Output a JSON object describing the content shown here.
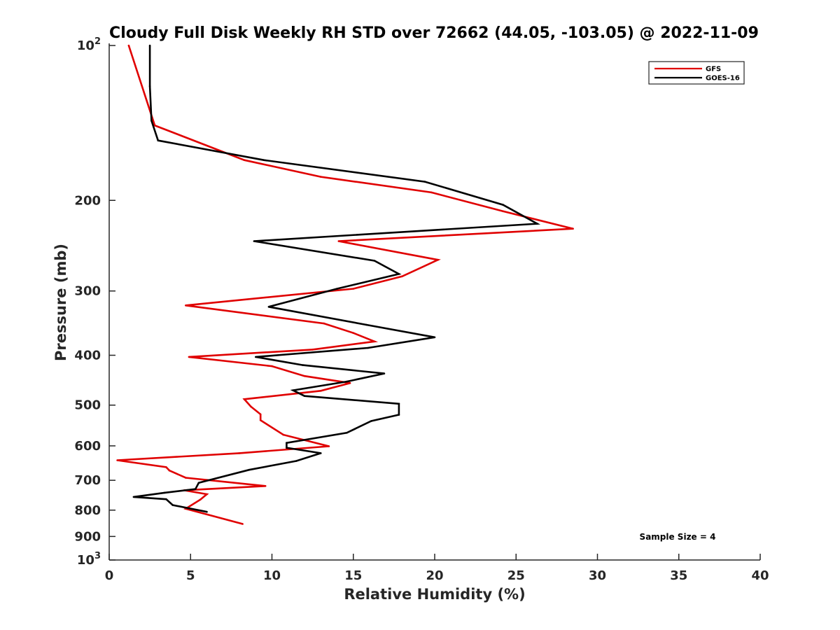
{
  "chart_data": {
    "type": "line",
    "title": "Cloudy Full Disk Weekly RH STD over 72662 (44.05, -103.05) @ 2022-11-09",
    "xlabel": "Relative Humidity (%)",
    "ylabel": "Pressure (mb)",
    "xlim": [
      0,
      40
    ],
    "ylim": [
      100,
      1000
    ],
    "y_scale": "log",
    "y_reversed": true,
    "x_ticks": [
      "0",
      "5",
      "10",
      "15",
      "20",
      "25",
      "30",
      "35",
      "40"
    ],
    "y_ticks": [
      {
        "value": 100,
        "base": "10",
        "exp": "2"
      },
      {
        "value": 200,
        "label": "200"
      },
      {
        "value": 300,
        "label": "300"
      },
      {
        "value": 400,
        "label": "400"
      },
      {
        "value": 500,
        "label": "500"
      },
      {
        "value": 600,
        "label": "600"
      },
      {
        "value": 700,
        "label": "700"
      },
      {
        "value": 800,
        "label": "800"
      },
      {
        "value": 900,
        "label": "900"
      },
      {
        "value": 1000,
        "base": "10",
        "exp": "3"
      }
    ],
    "grid": false,
    "legend_position": "top-right",
    "annotation": "Sample Size = 4",
    "series": [
      {
        "name": "GFS",
        "color": "#e00000",
        "x": [
          1.2,
          2.8,
          8.3,
          13.0,
          19.8,
          24.2,
          28.5,
          14.1,
          20.2,
          18.0,
          15.0,
          4.7,
          13.2,
          15.0,
          16.3,
          12.5,
          4.9,
          10.0,
          12.0,
          14.8,
          13.0,
          8.3,
          8.7,
          9.3,
          9.3,
          10.7,
          13.5,
          8.0,
          0.5,
          3.5,
          3.7,
          4.7,
          9.6,
          4.6,
          6.0,
          5.6,
          4.7,
          8.2
        ],
        "y": [
          100,
          143,
          167,
          180,
          193,
          210,
          227,
          240,
          261,
          281,
          297,
          320,
          347,
          362,
          376,
          390,
          403,
          420,
          439,
          453,
          469,
          487,
          503,
          521,
          535,
          571,
          601,
          620,
          640,
          660,
          670,
          692,
          718,
          732,
          745,
          763,
          795,
          851
        ]
      },
      {
        "name": "GOES-16",
        "color": "#000000",
        "x": [
          2.5,
          2.5,
          2.6,
          3.0,
          9.5,
          19.4,
          24.2,
          26.3,
          8.9,
          16.3,
          17.8,
          14.0,
          9.8,
          15.8,
          20.0,
          15.9,
          9.0,
          11.9,
          16.9,
          14.6,
          11.3,
          12.0,
          17.8,
          17.8,
          16.1,
          14.6,
          10.9,
          10.9,
          13.0,
          11.5,
          8.6,
          5.5,
          5.3,
          3.4,
          1.5,
          3.5,
          3.9,
          6.0
        ],
        "y": [
          100,
          120,
          140,
          153,
          167,
          184,
          204,
          222,
          240,
          262,
          278,
          297,
          322,
          349,
          369,
          387,
          403,
          418,
          434,
          450,
          468,
          480,
          497,
          522,
          537,
          566,
          592,
          605,
          620,
          642,
          668,
          708,
          728,
          740,
          754,
          762,
          782,
          806
        ]
      }
    ]
  }
}
